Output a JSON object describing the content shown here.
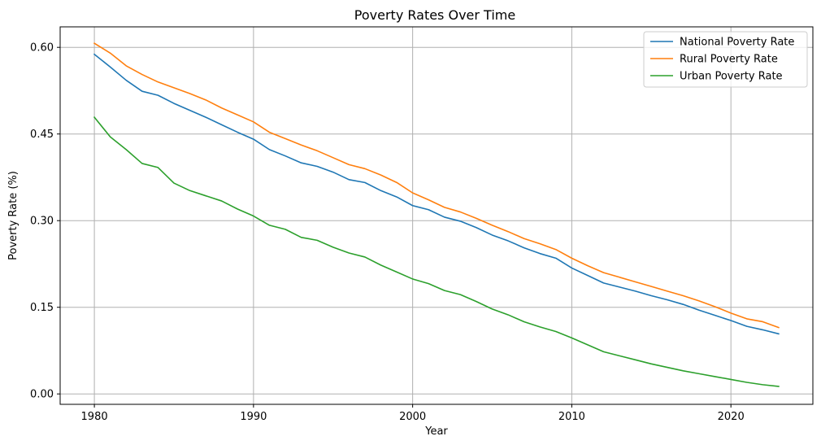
{
  "chart_data": {
    "type": "line",
    "title": "Poverty Rates Over Time",
    "xlabel": "Year",
    "ylabel": "Poverty Rate (%)",
    "xlim": [
      1977.85,
      2025.15
    ],
    "ylim": [
      -0.018,
      0.6355
    ],
    "xticks": [
      1980,
      1990,
      2000,
      2010,
      2020
    ],
    "yticks": [
      0.0,
      0.15,
      0.3,
      0.45,
      0.6
    ],
    "ytick_labels": [
      "0.00",
      "0.15",
      "0.30",
      "0.45",
      "0.60"
    ],
    "grid": true,
    "legend_position": "top-right",
    "x": [
      1980,
      1981,
      1982,
      1983,
      1984,
      1985,
      1986,
      1987,
      1988,
      1989,
      1990,
      1991,
      1992,
      1993,
      1994,
      1995,
      1996,
      1997,
      1998,
      1999,
      2000,
      2001,
      2002,
      2003,
      2004,
      2005,
      2006,
      2007,
      2008,
      2009,
      2010,
      2011,
      2012,
      2013,
      2014,
      2015,
      2016,
      2017,
      2018,
      2019,
      2020,
      2021,
      2022,
      2023
    ],
    "series": [
      {
        "name": "National Poverty Rate",
        "color": "#1f77b4",
        "values": [
          0.588,
          0.566,
          0.543,
          0.524,
          0.517,
          0.503,
          0.491,
          0.479,
          0.466,
          0.453,
          0.441,
          0.423,
          0.412,
          0.4,
          0.394,
          0.384,
          0.371,
          0.366,
          0.352,
          0.341,
          0.326,
          0.319,
          0.306,
          0.299,
          0.288,
          0.275,
          0.265,
          0.253,
          0.243,
          0.235,
          0.218,
          0.205,
          0.192,
          0.185,
          0.178,
          0.17,
          0.163,
          0.155,
          0.145,
          0.136,
          0.127,
          0.117,
          0.111,
          0.104
        ]
      },
      {
        "name": "Rural Poverty Rate",
        "color": "#ff7f0e",
        "values": [
          0.607,
          0.59,
          0.568,
          0.553,
          0.54,
          0.53,
          0.52,
          0.509,
          0.495,
          0.483,
          0.471,
          0.453,
          0.442,
          0.431,
          0.421,
          0.409,
          0.397,
          0.39,
          0.379,
          0.366,
          0.348,
          0.336,
          0.323,
          0.315,
          0.304,
          0.292,
          0.281,
          0.269,
          0.26,
          0.25,
          0.235,
          0.222,
          0.21,
          0.202,
          0.194,
          0.186,
          0.178,
          0.17,
          0.161,
          0.151,
          0.14,
          0.13,
          0.125,
          0.115
        ]
      },
      {
        "name": "Urban Poverty Rate",
        "color": "#2ca02c",
        "values": [
          0.479,
          0.445,
          0.423,
          0.399,
          0.392,
          0.365,
          0.352,
          0.343,
          0.334,
          0.32,
          0.308,
          0.292,
          0.285,
          0.271,
          0.266,
          0.254,
          0.244,
          0.237,
          0.223,
          0.211,
          0.199,
          0.191,
          0.179,
          0.172,
          0.16,
          0.147,
          0.137,
          0.125,
          0.116,
          0.108,
          0.097,
          0.085,
          0.073,
          0.066,
          0.059,
          0.052,
          0.046,
          0.04,
          0.035,
          0.03,
          0.025,
          0.02,
          0.016,
          0.013
        ]
      }
    ]
  }
}
